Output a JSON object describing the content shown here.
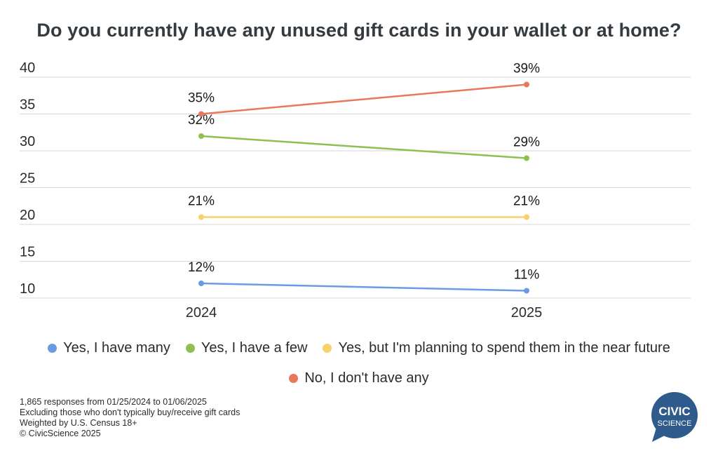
{
  "title": "Do you currently have any unused gift cards in your wallet or at home?",
  "chart_data": {
    "type": "line",
    "title": "Do you currently have any unused gift cards in your wallet or at home?",
    "x": [
      "2024",
      "2025"
    ],
    "ylim": [
      10,
      40
    ],
    "yticks": [
      10,
      15,
      20,
      25,
      30,
      35,
      40
    ],
    "grid": true,
    "legend_position": "bottom",
    "series": [
      {
        "name": "Yes, I have many",
        "color": "#6a9be0",
        "values": [
          12,
          11
        ],
        "labels": [
          "12%",
          "11%"
        ]
      },
      {
        "name": "Yes, I have a few",
        "color": "#8cc152",
        "values": [
          32,
          29
        ],
        "labels": [
          "32%",
          "29%"
        ]
      },
      {
        "name": "Yes, but I'm planning to spend them in the near future",
        "color": "#f8d16a",
        "values": [
          21,
          21
        ],
        "labels": [
          "21%",
          "21%"
        ]
      },
      {
        "name": "No, I don't have any",
        "color": "#e9785b",
        "values": [
          35,
          39
        ],
        "labels": [
          "35%",
          "39%"
        ]
      }
    ]
  },
  "footnotes": [
    "1,865 responses from 01/25/2024 to 01/06/2025",
    "Excluding those who don't typically buy/receive gift cards",
    "Weighted by U.S. Census 18+",
    "© CivicScience 2025"
  ],
  "logo": {
    "line1": "CIVIC",
    "line2": "SCIENCE",
    "color": "#2e5a8c"
  }
}
